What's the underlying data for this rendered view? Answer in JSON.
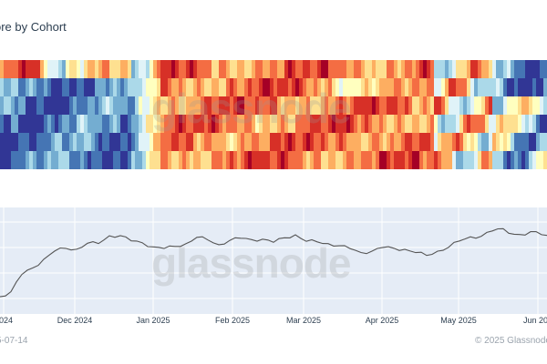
{
  "chart_data": {
    "type": "heatmap",
    "title": "ore by Cohort",
    "x_ticks": [
      "2024",
      "Dec 2024",
      "Jan 2025",
      "Feb 2025",
      "Mar 2025",
      "Apr 2025",
      "May 2025",
      "Jun 202"
    ],
    "heatmap": {
      "rows": 6,
      "colors": [
        "#313695",
        "#4575b4",
        "#74add1",
        "#abd9e9",
        "#e0f3f8",
        "#ffffbf",
        "#fee090",
        "#fdae61",
        "#f46d43",
        "#d73027",
        "#a50026"
      ]
    },
    "price_series": {
      "values": [
        10,
        15,
        28,
        35,
        42,
        48,
        52,
        50,
        55,
        56,
        61,
        62,
        58,
        55,
        53,
        51,
        52,
        56,
        60,
        58,
        55,
        57,
        60,
        59,
        58,
        57,
        60,
        62,
        58,
        56,
        55,
        54,
        50,
        48,
        49,
        51,
        52,
        50,
        47,
        46,
        48,
        52,
        58,
        60,
        62,
        66,
        67,
        64,
        62,
        65,
        63
      ]
    },
    "grid": true,
    "legend": "none"
  },
  "watermark": "glassnode",
  "footer": {
    "date": "5-07-14",
    "copyright": "© 2025 Glassnode"
  }
}
